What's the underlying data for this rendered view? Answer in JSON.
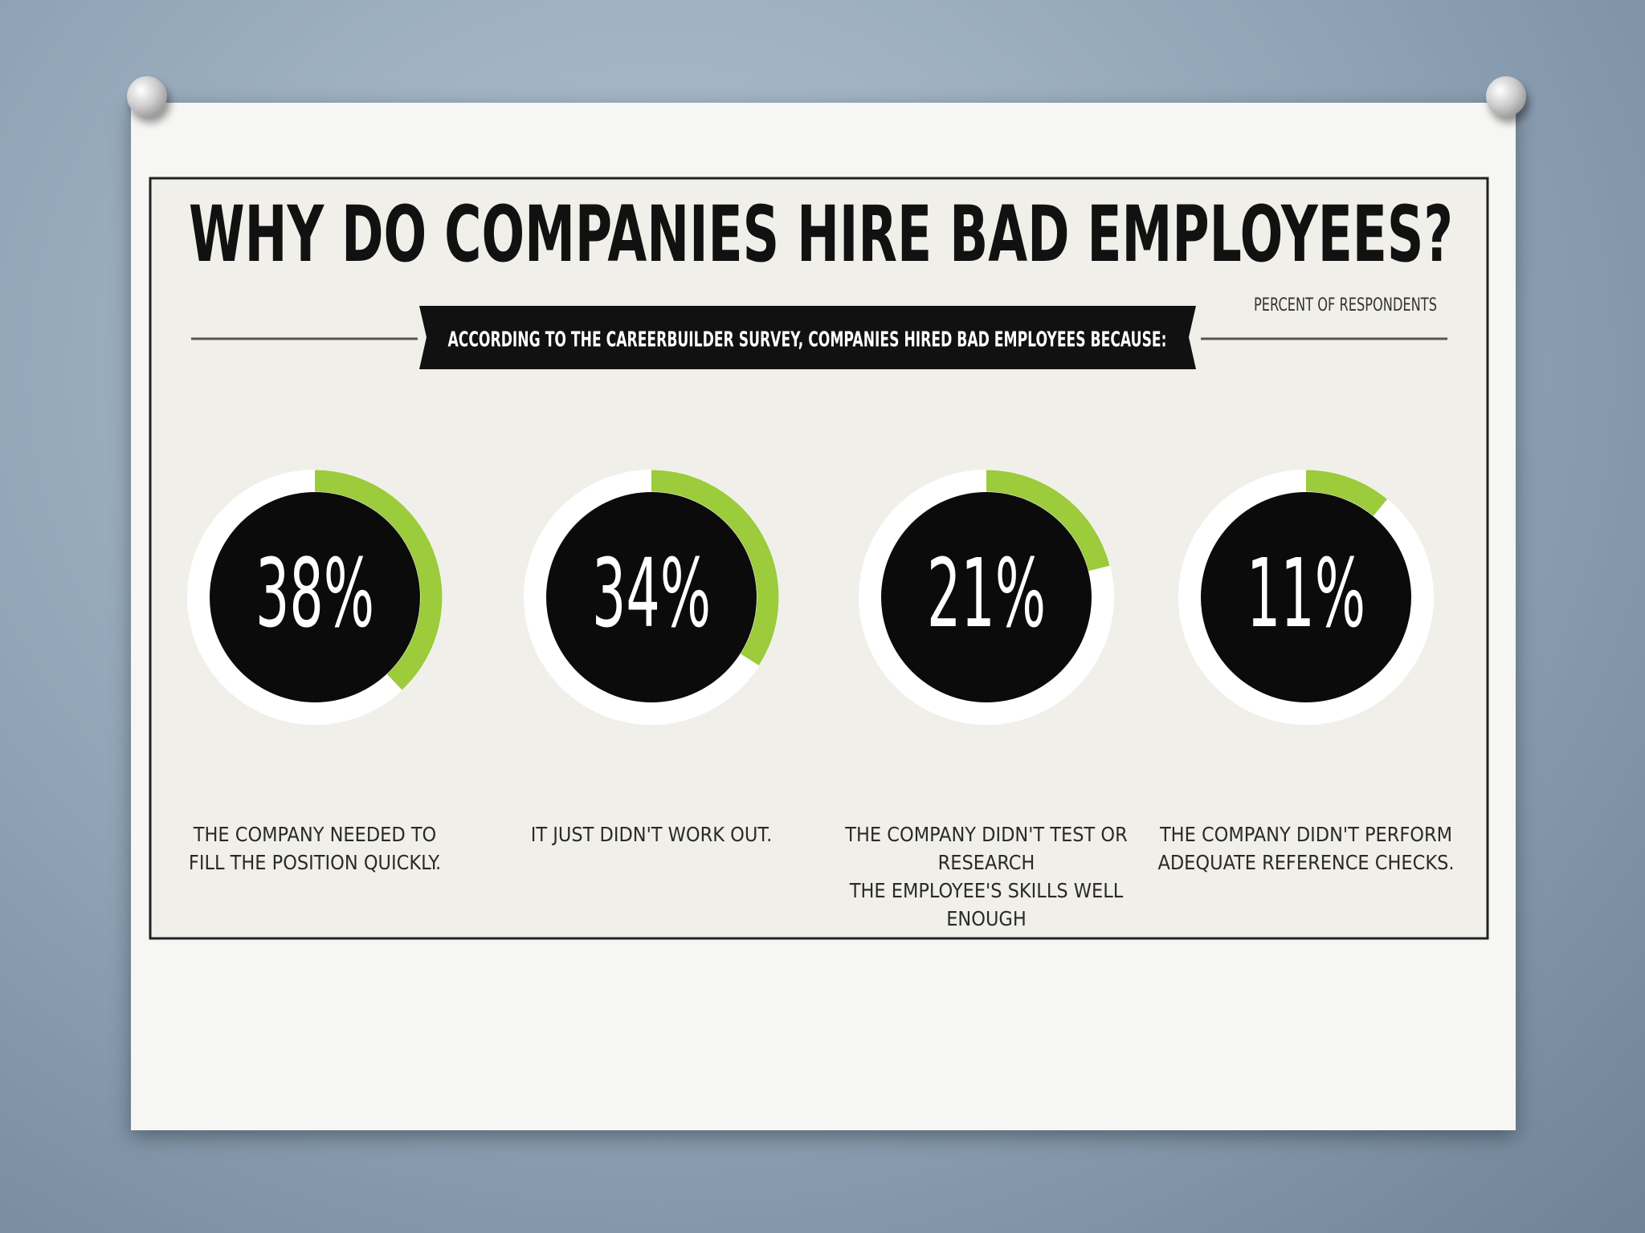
{
  "chart_data": {
    "type": "ring",
    "title": "WHY DO COMPANIES HIRE BAD EMPLOYEES?",
    "subtitle": "ACCORDING TO THE CAREERBUILDER SURVEY, COMPANIES HIRED BAD EMPLOYEES BECAUSE:",
    "note": "PERCENT OF RESPONDENTS",
    "categories": [
      "THE COMPANY NEEDED TO\nFILL THE POSITION QUICKLY.",
      "IT JUST DIDN'T WORK OUT.",
      "THE COMPANY DIDN'T TEST OR RESEARCH\nTHE EMPLOYEE'S SKILLS WELL ENOUGH",
      "THE COMPANY DIDN'T PERFORM\nADEQUATE REFERENCE CHECKS."
    ],
    "values": [
      38,
      34,
      21,
      11
    ],
    "value_labels": [
      "38%",
      "34%",
      "21%",
      "11%"
    ],
    "ylim": [
      0,
      100
    ],
    "color": "#9ccb3b"
  }
}
